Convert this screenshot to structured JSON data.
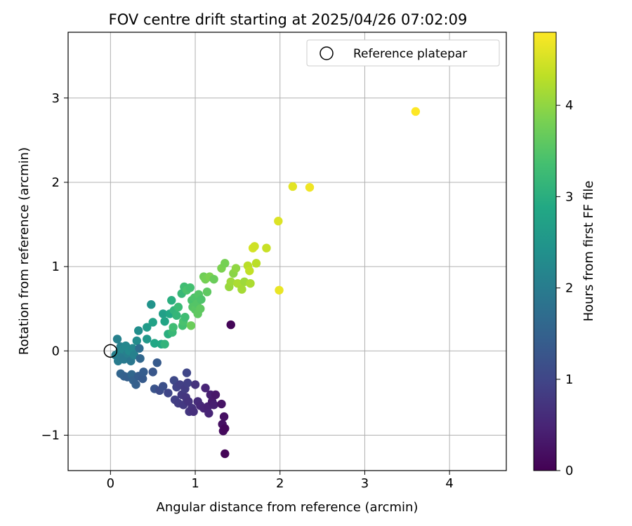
{
  "chart_data": {
    "type": "scatter",
    "title": "FOV centre drift starting at 2025/04/26 07:02:09",
    "xlabel": "Angular distance from reference (arcmin)",
    "ylabel": "Rotation from reference (arcmin)",
    "xlim": [
      -0.5,
      4.67
    ],
    "ylim": [
      -1.42,
      3.78
    ],
    "xticks": [
      0,
      1,
      2,
      3,
      4
    ],
    "yticks": [
      -1,
      0,
      1,
      2,
      3
    ],
    "grid": true,
    "legend": {
      "placement": "top-right",
      "entries": [
        "Reference platepar"
      ]
    },
    "reference_point": {
      "x": 0,
      "y": 0,
      "label": "Reference platepar"
    },
    "colorbar": {
      "label": "Hours from first FF file",
      "colormap": "viridis",
      "range": [
        0,
        4.8
      ],
      "ticks": [
        0,
        1,
        2,
        3,
        4
      ]
    },
    "points": [
      {
        "x": 0.06,
        "y": -0.05,
        "c": 2.05
      },
      {
        "x": 0.08,
        "y": 0.14,
        "c": 2.1
      },
      {
        "x": 0.09,
        "y": -0.12,
        "c": 2.0
      },
      {
        "x": 0.1,
        "y": -0.02,
        "c": 2.15
      },
      {
        "x": 0.12,
        "y": 0.05,
        "c": 2.1
      },
      {
        "x": 0.13,
        "y": -0.08,
        "c": 2.0
      },
      {
        "x": 0.15,
        "y": 0.02,
        "c": 2.2
      },
      {
        "x": 0.16,
        "y": -0.1,
        "c": 1.95
      },
      {
        "x": 0.18,
        "y": 0.06,
        "c": 2.2
      },
      {
        "x": 0.2,
        "y": -0.03,
        "c": 2.05
      },
      {
        "x": 0.22,
        "y": 0.0,
        "c": 2.25
      },
      {
        "x": 0.24,
        "y": -0.12,
        "c": 1.9
      },
      {
        "x": 0.26,
        "y": 0.03,
        "c": 2.2
      },
      {
        "x": 0.28,
        "y": -0.05,
        "c": 2.1
      },
      {
        "x": 0.31,
        "y": 0.12,
        "c": 2.3
      },
      {
        "x": 0.33,
        "y": 0.24,
        "c": 2.35
      },
      {
        "x": 0.34,
        "y": 0.03,
        "c": 1.7
      },
      {
        "x": 0.35,
        "y": -0.09,
        "c": 1.6
      },
      {
        "x": 0.43,
        "y": 0.28,
        "c": 2.6
      },
      {
        "x": 0.43,
        "y": 0.14,
        "c": 2.55
      },
      {
        "x": 0.48,
        "y": 0.55,
        "c": 2.45
      },
      {
        "x": 0.5,
        "y": 0.34,
        "c": 2.75
      },
      {
        "x": 0.52,
        "y": 0.09,
        "c": 2.85
      },
      {
        "x": 0.6,
        "y": 0.08,
        "c": 2.9
      },
      {
        "x": 0.62,
        "y": 0.44,
        "c": 2.7
      },
      {
        "x": 0.64,
        "y": 0.35,
        "c": 2.8
      },
      {
        "x": 0.64,
        "y": 0.08,
        "c": 3.1
      },
      {
        "x": 0.68,
        "y": 0.2,
        "c": 3.0
      },
      {
        "x": 0.7,
        "y": 0.44,
        "c": 2.85
      },
      {
        "x": 0.72,
        "y": 0.6,
        "c": 3.0
      },
      {
        "x": 0.73,
        "y": 0.22,
        "c": 3.2
      },
      {
        "x": 0.74,
        "y": 0.28,
        "c": 3.3
      },
      {
        "x": 0.75,
        "y": 0.48,
        "c": 3.1
      },
      {
        "x": 0.78,
        "y": 0.42,
        "c": 3.15
      },
      {
        "x": 0.8,
        "y": 0.52,
        "c": 3.25
      },
      {
        "x": 0.84,
        "y": 0.68,
        "c": 3.2
      },
      {
        "x": 0.85,
        "y": 0.3,
        "c": 3.35
      },
      {
        "x": 0.86,
        "y": 0.35,
        "c": 3.4
      },
      {
        "x": 0.87,
        "y": 0.76,
        "c": 3.3
      },
      {
        "x": 0.88,
        "y": 0.4,
        "c": 3.3
      },
      {
        "x": 0.9,
        "y": 0.72,
        "c": 3.4
      },
      {
        "x": 0.94,
        "y": 0.75,
        "c": 3.35
      },
      {
        "x": 0.95,
        "y": 0.3,
        "c": 3.7
      },
      {
        "x": 0.96,
        "y": 0.6,
        "c": 3.4
      },
      {
        "x": 0.97,
        "y": 0.52,
        "c": 3.5
      },
      {
        "x": 0.99,
        "y": 0.63,
        "c": 3.45
      },
      {
        "x": 1.0,
        "y": 0.49,
        "c": 3.55
      },
      {
        "x": 1.02,
        "y": 0.56,
        "c": 3.5
      },
      {
        "x": 1.03,
        "y": 0.44,
        "c": 3.6
      },
      {
        "x": 1.04,
        "y": 0.67,
        "c": 3.5
      },
      {
        "x": 1.06,
        "y": 0.5,
        "c": 3.6
      },
      {
        "x": 1.07,
        "y": 0.61,
        "c": 3.45
      },
      {
        "x": 1.1,
        "y": 0.88,
        "c": 3.75
      },
      {
        "x": 1.12,
        "y": 0.85,
        "c": 3.8
      },
      {
        "x": 1.14,
        "y": 0.7,
        "c": 3.6
      },
      {
        "x": 1.17,
        "y": 0.88,
        "c": 3.85
      },
      {
        "x": 1.22,
        "y": 0.85,
        "c": 3.7
      },
      {
        "x": 1.31,
        "y": 0.98,
        "c": 3.85
      },
      {
        "x": 1.35,
        "y": 1.04,
        "c": 3.8
      },
      {
        "x": 1.4,
        "y": 0.76,
        "c": 4.05
      },
      {
        "x": 1.42,
        "y": 0.82,
        "c": 4.1
      },
      {
        "x": 1.45,
        "y": 0.92,
        "c": 3.95
      },
      {
        "x": 1.48,
        "y": 0.98,
        "c": 4.0
      },
      {
        "x": 1.5,
        "y": 0.8,
        "c": 4.2
      },
      {
        "x": 1.55,
        "y": 0.73,
        "c": 4.15
      },
      {
        "x": 1.58,
        "y": 0.82,
        "c": 4.1
      },
      {
        "x": 1.62,
        "y": 1.01,
        "c": 4.3
      },
      {
        "x": 1.64,
        "y": 0.95,
        "c": 4.35
      },
      {
        "x": 1.65,
        "y": 0.8,
        "c": 4.2
      },
      {
        "x": 1.68,
        "y": 1.22,
        "c": 4.5
      },
      {
        "x": 1.7,
        "y": 1.24,
        "c": 4.45
      },
      {
        "x": 1.72,
        "y": 1.04,
        "c": 4.3
      },
      {
        "x": 1.84,
        "y": 1.22,
        "c": 4.4
      },
      {
        "x": 1.98,
        "y": 1.54,
        "c": 4.55
      },
      {
        "x": 1.99,
        "y": 0.72,
        "c": 4.65
      },
      {
        "x": 2.15,
        "y": 1.95,
        "c": 4.6
      },
      {
        "x": 2.35,
        "y": 1.94,
        "c": 4.7
      },
      {
        "x": 3.6,
        "y": 2.84,
        "c": 4.8
      },
      {
        "x": 0.12,
        "y": -0.27,
        "c": 1.55
      },
      {
        "x": 0.16,
        "y": -0.3,
        "c": 1.5
      },
      {
        "x": 0.2,
        "y": -0.31,
        "c": 1.45
      },
      {
        "x": 0.25,
        "y": -0.28,
        "c": 1.6
      },
      {
        "x": 0.27,
        "y": -0.35,
        "c": 1.5
      },
      {
        "x": 0.3,
        "y": -0.4,
        "c": 1.45
      },
      {
        "x": 0.33,
        "y": -0.3,
        "c": 1.4
      },
      {
        "x": 0.38,
        "y": -0.33,
        "c": 1.35
      },
      {
        "x": 0.39,
        "y": -0.25,
        "c": 1.4
      },
      {
        "x": 0.5,
        "y": -0.25,
        "c": 1.3
      },
      {
        "x": 0.52,
        "y": -0.45,
        "c": 1.25
      },
      {
        "x": 0.55,
        "y": -0.14,
        "c": 1.35
      },
      {
        "x": 0.58,
        "y": -0.47,
        "c": 1.1
      },
      {
        "x": 0.62,
        "y": -0.42,
        "c": 1.15
      },
      {
        "x": 0.68,
        "y": -0.5,
        "c": 1.0
      },
      {
        "x": 0.75,
        "y": -0.35,
        "c": 1.05
      },
      {
        "x": 0.76,
        "y": -0.58,
        "c": 0.9
      },
      {
        "x": 0.78,
        "y": -0.43,
        "c": 0.95
      },
      {
        "x": 0.8,
        "y": -0.62,
        "c": 0.85
      },
      {
        "x": 0.82,
        "y": -0.4,
        "c": 0.9
      },
      {
        "x": 0.84,
        "y": -0.52,
        "c": 0.8
      },
      {
        "x": 0.86,
        "y": -0.64,
        "c": 0.8
      },
      {
        "x": 0.88,
        "y": -0.45,
        "c": 0.85
      },
      {
        "x": 0.89,
        "y": -0.55,
        "c": 0.75
      },
      {
        "x": 0.9,
        "y": -0.26,
        "c": 1.0
      },
      {
        "x": 0.91,
        "y": -0.38,
        "c": 0.9
      },
      {
        "x": 0.92,
        "y": -0.6,
        "c": 0.7
      },
      {
        "x": 0.93,
        "y": -0.72,
        "c": 0.75
      },
      {
        "x": 0.96,
        "y": -0.68,
        "c": 0.7
      },
      {
        "x": 0.98,
        "y": -0.72,
        "c": 0.65
      },
      {
        "x": 1.0,
        "y": -0.4,
        "c": 0.7
      },
      {
        "x": 1.03,
        "y": -0.6,
        "c": 0.6
      },
      {
        "x": 1.06,
        "y": -0.65,
        "c": 0.55
      },
      {
        "x": 1.1,
        "y": -0.68,
        "c": 0.5
      },
      {
        "x": 1.12,
        "y": -0.44,
        "c": 0.5
      },
      {
        "x": 1.15,
        "y": -0.66,
        "c": 0.45
      },
      {
        "x": 1.16,
        "y": -0.74,
        "c": 0.5
      },
      {
        "x": 1.18,
        "y": -0.52,
        "c": 0.4
      },
      {
        "x": 1.2,
        "y": -0.6,
        "c": 0.35
      },
      {
        "x": 1.22,
        "y": -0.64,
        "c": 0.4
      },
      {
        "x": 1.24,
        "y": -0.52,
        "c": 0.3
      },
      {
        "x": 1.31,
        "y": -0.63,
        "c": 0.25
      },
      {
        "x": 1.32,
        "y": -0.87,
        "c": 0.2
      },
      {
        "x": 1.33,
        "y": -0.95,
        "c": 0.15
      },
      {
        "x": 1.34,
        "y": -0.78,
        "c": 0.2
      },
      {
        "x": 1.35,
        "y": -0.92,
        "c": 0.1
      },
      {
        "x": 1.35,
        "y": -1.22,
        "c": 0.05
      },
      {
        "x": 1.42,
        "y": 0.31,
        "c": 0.05
      }
    ]
  }
}
